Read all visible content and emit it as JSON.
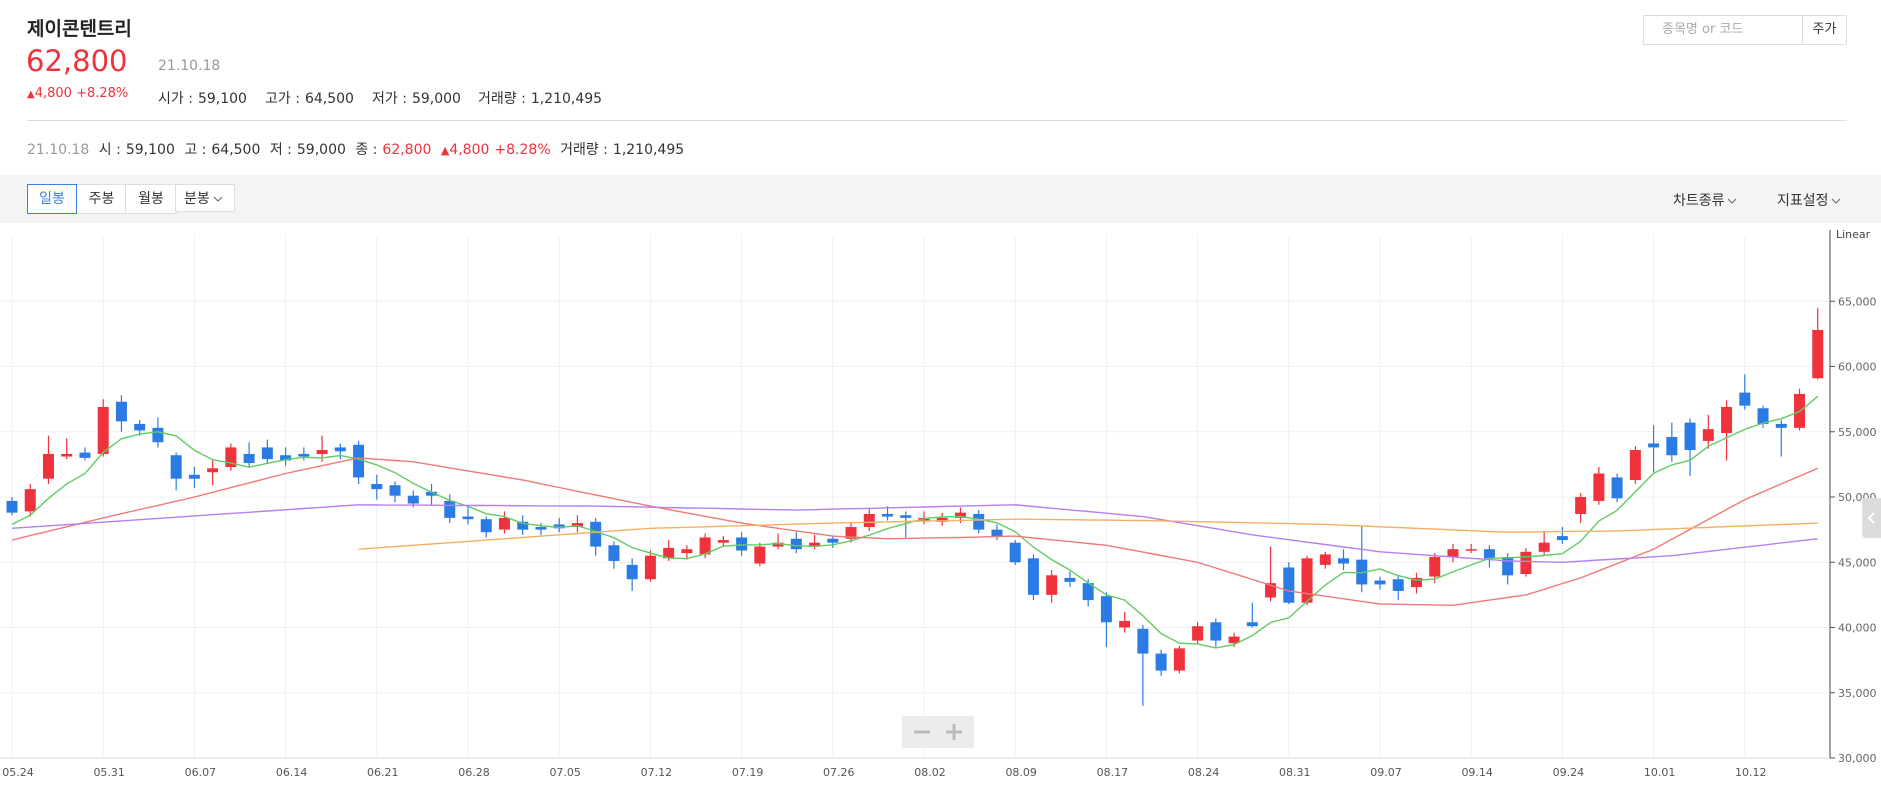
{
  "header": {
    "title": "제이콘텐트리",
    "price": "62,800",
    "date": "21.10.18",
    "change": "4,800",
    "change_pct": "+8.28%",
    "stats": [
      {
        "label": "시가 :",
        "value": "59,100"
      },
      {
        "label": "고가 :",
        "value": "64,500"
      },
      {
        "label": "저가 :",
        "value": "59,000"
      },
      {
        "label": "거래량 :",
        "value": "1,210,495"
      }
    ]
  },
  "search": {
    "placeholder": "종목명 or 코드",
    "button": "주가"
  },
  "info": {
    "date": "21.10.18",
    "items": [
      {
        "label": "시 :",
        "value": "59,100"
      },
      {
        "label": "고 :",
        "value": "64,500"
      },
      {
        "label": "저 :",
        "value": "59,000"
      },
      {
        "label": "종 :",
        "value": "62,800"
      }
    ],
    "change": "4,800",
    "change_pct": "+8.28%",
    "volume": {
      "label": "거래량 :",
      "value": "1,210,495"
    }
  },
  "toolbar": {
    "periods": [
      "일봉",
      "주봉",
      "월봉",
      "분봉"
    ],
    "menus": [
      "차트종류",
      "지표설정"
    ]
  },
  "chart_data": {
    "type": "candlestick",
    "scale_label": "Linear",
    "up_color": "#f0323c",
    "down_color": "#2b7be4",
    "grid": true,
    "ylim": [
      30000,
      70000
    ],
    "yticks": [
      {
        "value": 30000,
        "label": "30,000"
      },
      {
        "value": 35000,
        "label": "35,000"
      },
      {
        "value": 40000,
        "label": "40,000"
      },
      {
        "value": 45000,
        "label": "45,000"
      },
      {
        "value": 50000,
        "label": "50,000"
      },
      {
        "value": 55000,
        "label": "55,000"
      },
      {
        "value": 60000,
        "label": "60,000"
      },
      {
        "value": 65000,
        "label": "65,000"
      }
    ],
    "categories": [
      "05.24",
      null,
      null,
      null,
      null,
      "05.31",
      null,
      null,
      null,
      null,
      "06.07",
      null,
      null,
      null,
      null,
      "06.14",
      null,
      null,
      null,
      null,
      "06.21",
      null,
      null,
      null,
      null,
      "06.28",
      null,
      null,
      null,
      null,
      "07.05",
      null,
      null,
      null,
      null,
      "07.12",
      null,
      null,
      null,
      null,
      "07.19",
      null,
      null,
      null,
      null,
      "07.26",
      null,
      null,
      null,
      null,
      "08.02",
      null,
      null,
      null,
      null,
      "08.09",
      null,
      null,
      null,
      null,
      "08.17",
      null,
      null,
      null,
      null,
      "08.24",
      null,
      null,
      null,
      null,
      "08.31",
      null,
      null,
      null,
      null,
      "09.07",
      null,
      null,
      null,
      null,
      "09.14",
      null,
      null,
      null,
      null,
      "09.24",
      null,
      null,
      null,
      null,
      "10.01",
      null,
      null,
      null,
      null,
      "10.12",
      null,
      null,
      null,
      null
    ],
    "open": [
      49700,
      48900,
      51400,
      53100,
      53400,
      53300,
      57300,
      55600,
      55300,
      53200,
      51700,
      51900,
      52300,
      53300,
      53800,
      53200,
      53300,
      53300,
      53800,
      54000,
      51000,
      50900,
      50100,
      50400,
      49700,
      48500,
      48300,
      47500,
      48100,
      47700,
      47900,
      47700,
      48100,
      46300,
      44800,
      43700,
      45300,
      45700,
      45600,
      46500,
      46900,
      44900,
      46200,
      46800,
      46200,
      46800,
      46800,
      47700,
      48700,
      48600,
      48200,
      48100,
      48400,
      48700,
      47500,
      46500,
      45300,
      42500,
      43800,
      43400,
      42400,
      40000,
      39900,
      38000,
      36700,
      39000,
      40400,
      38800,
      40400,
      42300,
      44600,
      41900,
      44800,
      45300,
      45200,
      43600,
      43700,
      43100,
      43900,
      45400,
      45900,
      46000,
      45400,
      44100,
      45800,
      47000,
      48700,
      49700,
      51500,
      51300,
      54100,
      54600,
      55700,
      54300,
      54900,
      58000,
      56800,
      55600,
      55300,
      59100
    ],
    "high": [
      50000,
      51000,
      54700,
      54500,
      53800,
      57500,
      57800,
      55900,
      56100,
      53400,
      52300,
      52800,
      54100,
      54200,
      54400,
      53800,
      53800,
      54700,
      54100,
      54300,
      51700,
      51200,
      50500,
      51000,
      50200,
      49400,
      48500,
      48900,
      48600,
      48000,
      48400,
      48600,
      48400,
      46600,
      45300,
      45900,
      46700,
      46300,
      47200,
      47000,
      47300,
      46500,
      47200,
      47300,
      47100,
      47000,
      48100,
      49100,
      49300,
      48900,
      48900,
      48800,
      49200,
      49000,
      47900,
      46700,
      45600,
      44400,
      44300,
      43700,
      42700,
      41200,
      40200,
      38300,
      38600,
      40400,
      40700,
      39600,
      41900,
      46200,
      45000,
      45500,
      45800,
      46000,
      47800,
      43900,
      44000,
      44200,
      45700,
      46400,
      46400,
      46300,
      45700,
      46100,
      47400,
      47700,
      50300,
      52300,
      51800,
      53900,
      55500,
      55700,
      56000,
      56300,
      57400,
      59400,
      57000,
      55900,
      58300,
      64500
    ],
    "low": [
      48600,
      48500,
      51000,
      52900,
      52800,
      53100,
      55000,
      54700,
      53800,
      50500,
      50700,
      50900,
      52000,
      52300,
      52600,
      52400,
      52800,
      52700,
      52900,
      51000,
      49800,
      49600,
      49200,
      49400,
      48000,
      47900,
      46900,
      47200,
      47100,
      47100,
      47300,
      47300,
      45500,
      44500,
      42800,
      43500,
      45100,
      45200,
      45300,
      46200,
      45500,
      44700,
      46000,
      45700,
      46000,
      46100,
      46500,
      47400,
      48200,
      46900,
      47900,
      47800,
      48000,
      47200,
      46700,
      44800,
      42100,
      41900,
      43100,
      41600,
      38500,
      39600,
      34000,
      36300,
      36500,
      38700,
      38500,
      38500,
      40000,
      42000,
      41800,
      41700,
      44500,
      44400,
      42700,
      42900,
      42100,
      42600,
      43400,
      45000,
      45700,
      44600,
      43300,
      43900,
      45500,
      46400,
      48000,
      49400,
      49600,
      51000,
      51900,
      52700,
      51600,
      53700,
      52800,
      56700,
      55300,
      53100,
      55100,
      59000
    ],
    "close": [
      48800,
      50600,
      53300,
      53300,
      53000,
      56900,
      55800,
      55100,
      54200,
      51400,
      51400,
      52200,
      53800,
      52600,
      52900,
      52800,
      53100,
      53600,
      53500,
      51500,
      50600,
      50100,
      49500,
      50100,
      48400,
      48300,
      47300,
      48400,
      47500,
      47500,
      47600,
      48000,
      46200,
      45100,
      43700,
      45500,
      46100,
      46000,
      46900,
      46700,
      45900,
      46200,
      46500,
      46000,
      46500,
      46500,
      47700,
      48700,
      48500,
      48400,
      48400,
      48400,
      48800,
      47500,
      47000,
      45000,
      42500,
      44000,
      43500,
      42100,
      40400,
      40500,
      38000,
      36700,
      38400,
      40100,
      39000,
      39300,
      40100,
      43400,
      41900,
      45300,
      45600,
      44900,
      43300,
      43300,
      42800,
      43800,
      45400,
      46000,
      46000,
      45300,
      44000,
      45800,
      46500,
      46700,
      50000,
      51800,
      49900,
      53600,
      53800,
      53200,
      53600,
      55200,
      56900,
      57000,
      55600,
      55300,
      57900,
      62800
    ],
    "series": [
      {
        "color": "#62cc62",
        "values": [
          47900,
          48600,
          49900,
          51000,
          51800,
          53420,
          54460,
          54820,
          55000,
          54680,
          53580,
          52860,
          52600,
          52280,
          52580,
          52860,
          53040,
          53000,
          53180,
          52900,
          52460,
          51860,
          51040,
          50360,
          49740,
          49280,
          48720,
          48500,
          47980,
          47800,
          47660,
          47800,
          47360,
          46880,
          46120,
          45700,
          45320,
          45280,
          45640,
          46240,
          46320,
          46340,
          46440,
          46260,
          46220,
          46340,
          46640,
          47080,
          47580,
          47960,
          48340,
          48480,
          48500,
          48300,
          48020,
          47340,
          46160,
          45200,
          44400,
          43420,
          42500,
          42100,
          40900,
          39540,
          38800,
          38740,
          38440,
          38700,
          39380,
          40380,
          40740,
          42000,
          43260,
          44220,
          44200,
          44480,
          43980,
          43620,
          43720,
          44260,
          44800,
          45300,
          45340,
          45420,
          45520,
          45660,
          46600,
          48160,
          48980,
          50400,
          51820,
          52460,
          52820,
          53880,
          54540,
          55180,
          55660,
          56000,
          56540,
          57720
        ]
      },
      {
        "color": "#f07a7a",
        "values": [
          46700,
          47040,
          47380,
          47720,
          48060,
          48400,
          48720,
          49040,
          49360,
          49680,
          50000,
          50360,
          50720,
          51080,
          51440,
          51800,
          52100,
          52400,
          52700,
          53000,
          52900,
          52800,
          52700,
          52470,
          52230,
          52000,
          51770,
          51530,
          51300,
          51010,
          50730,
          50440,
          50160,
          49870,
          49590,
          49300,
          49040,
          48780,
          48520,
          48260,
          48000,
          47800,
          47600,
          47400,
          47200,
          47000,
          46930,
          46870,
          46800,
          46830,
          46850,
          46880,
          46900,
          46930,
          46970,
          47000,
          46860,
          46720,
          46580,
          46440,
          46300,
          46040,
          45780,
          45520,
          45260,
          45000,
          44560,
          44120,
          43680,
          43240,
          42800,
          42600,
          42400,
          42200,
          42000,
          41800,
          41780,
          41750,
          41730,
          41700,
          41900,
          42100,
          42300,
          42500,
          42930,
          43370,
          43800,
          44350,
          44900,
          45450,
          46000,
          46760,
          47520,
          48280,
          49040,
          49800,
          50400,
          51000,
          51600,
          52200
        ]
      },
      {
        "color": "#b77ff0",
        "values": [
          47600,
          47690,
          47790,
          47880,
          47980,
          48070,
          48170,
          48260,
          48360,
          48450,
          48550,
          48640,
          48740,
          48830,
          48930,
          49020,
          49120,
          49210,
          49310,
          49400,
          49390,
          49380,
          49380,
          49370,
          49360,
          49350,
          49350,
          49340,
          49330,
          49320,
          49320,
          49310,
          49300,
          49270,
          49250,
          49220,
          49190,
          49160,
          49140,
          49110,
          49080,
          49050,
          49030,
          49000,
          49030,
          49070,
          49100,
          49130,
          49170,
          49200,
          49230,
          49270,
          49300,
          49330,
          49370,
          49400,
          49270,
          49140,
          49010,
          48890,
          48760,
          48630,
          48500,
          48270,
          48030,
          47800,
          47570,
          47330,
          47100,
          46910,
          46730,
          46540,
          46360,
          46170,
          45990,
          45800,
          45700,
          45600,
          45500,
          45400,
          45300,
          45200,
          45100,
          45070,
          45030,
          45000,
          45080,
          45170,
          45250,
          45330,
          45420,
          45500,
          45660,
          45830,
          45990,
          46150,
          46310,
          46480,
          46640,
          46800
        ]
      },
      {
        "color": "#f4b064",
        "values": [
          null,
          null,
          null,
          null,
          null,
          null,
          null,
          null,
          null,
          null,
          null,
          null,
          null,
          null,
          null,
          null,
          null,
          null,
          null,
          46000,
          46100,
          46200,
          46300,
          46400,
          46500,
          46600,
          46700,
          46800,
          46900,
          47000,
          47100,
          47200,
          47300,
          47400,
          47500,
          47600,
          47640,
          47680,
          47720,
          47760,
          47800,
          47840,
          47880,
          47920,
          47960,
          48000,
          48030,
          48060,
          48090,
          48120,
          48150,
          48180,
          48210,
          48240,
          48270,
          48300,
          48290,
          48270,
          48260,
          48240,
          48230,
          48210,
          48200,
          48170,
          48140,
          48110,
          48080,
          48050,
          48020,
          47990,
          47960,
          47930,
          47900,
          47840,
          47780,
          47720,
          47660,
          47600,
          47540,
          47480,
          47420,
          47360,
          47300,
          47320,
          47330,
          47350,
          47370,
          47380,
          47400,
          47450,
          47510,
          47560,
          47620,
          47670,
          47730,
          47780,
          47840,
          47890,
          47950,
          48000
        ]
      }
    ]
  }
}
